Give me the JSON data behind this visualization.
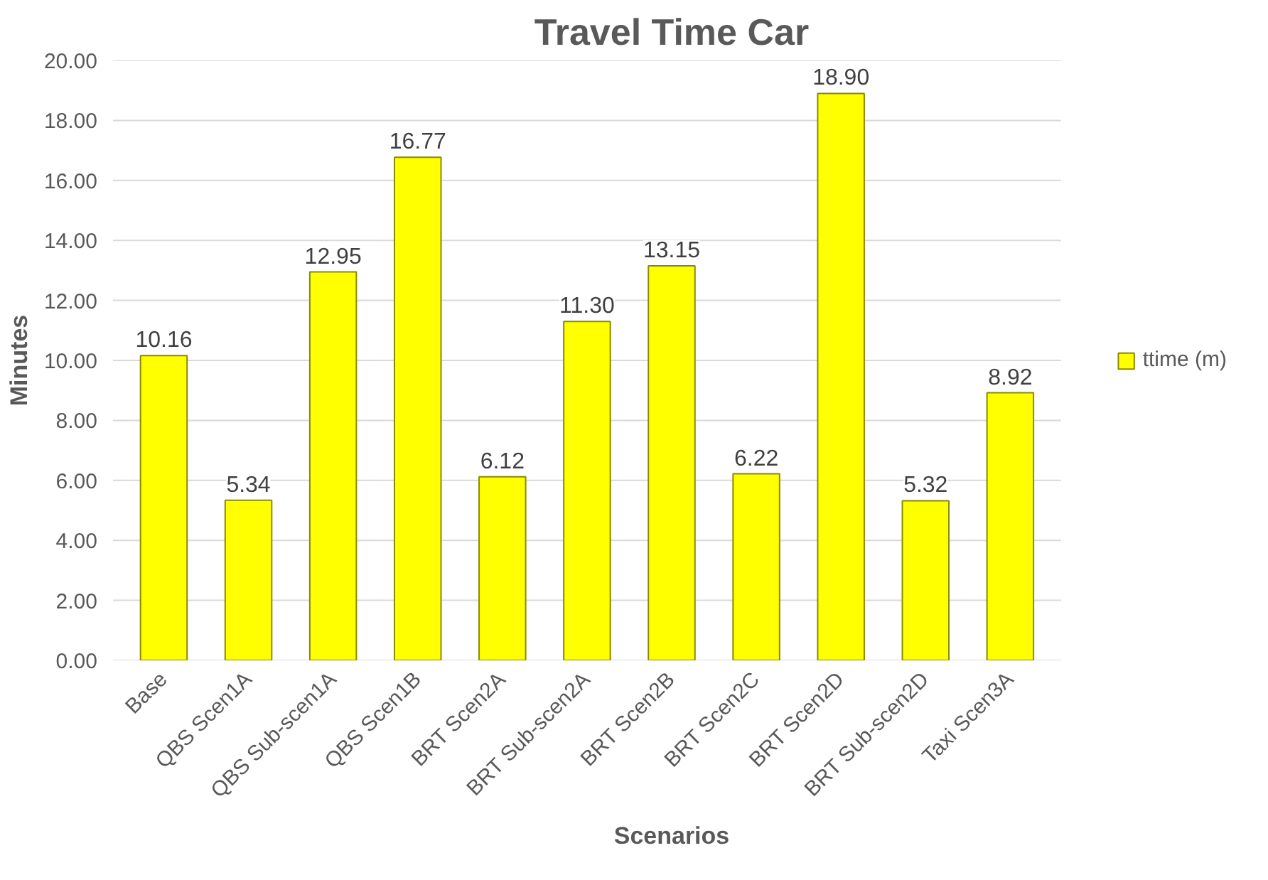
{
  "chart_data": {
    "type": "bar",
    "title": "Travel Time Car",
    "xlabel": "Scenarios",
    "ylabel": "Minutes",
    "categories": [
      "Base",
      "QBS Scen1A",
      "QBS Sub-scen1A",
      "QBS Scen1B",
      "BRT Scen2A",
      "BRT Sub-scen2A",
      "BRT Scen2B",
      "BRT Scen2C",
      "BRT Scen2D",
      "BRT Sub-scen2D",
      "Taxi Scen3A"
    ],
    "series": [
      {
        "name": "ttime (m)",
        "color": "#ffff00",
        "values": [
          10.16,
          5.34,
          12.95,
          16.77,
          6.12,
          11.3,
          13.15,
          6.22,
          18.9,
          5.32,
          8.92
        ],
        "value_labels": [
          "10.16",
          "5.34",
          "12.95",
          "16.77",
          "6.12",
          "11.30",
          "13.15",
          "6.22",
          "18.90",
          "5.32",
          "8.92"
        ]
      }
    ],
    "ylim": [
      0,
      20
    ],
    "yticks": [
      {
        "value": 0,
        "label": "0.00"
      },
      {
        "value": 2,
        "label": "2.00"
      },
      {
        "value": 4,
        "label": "4.00"
      },
      {
        "value": 6,
        "label": "6.00"
      },
      {
        "value": 8,
        "label": "8.00"
      },
      {
        "value": 10,
        "label": "10.00"
      },
      {
        "value": 12,
        "label": "12.00"
      },
      {
        "value": 14,
        "label": "14.00"
      },
      {
        "value": 16,
        "label": "16.00"
      },
      {
        "value": 18,
        "label": "18.00"
      },
      {
        "value": 20,
        "label": "20.00"
      }
    ],
    "grid": "y",
    "legend": "right"
  }
}
